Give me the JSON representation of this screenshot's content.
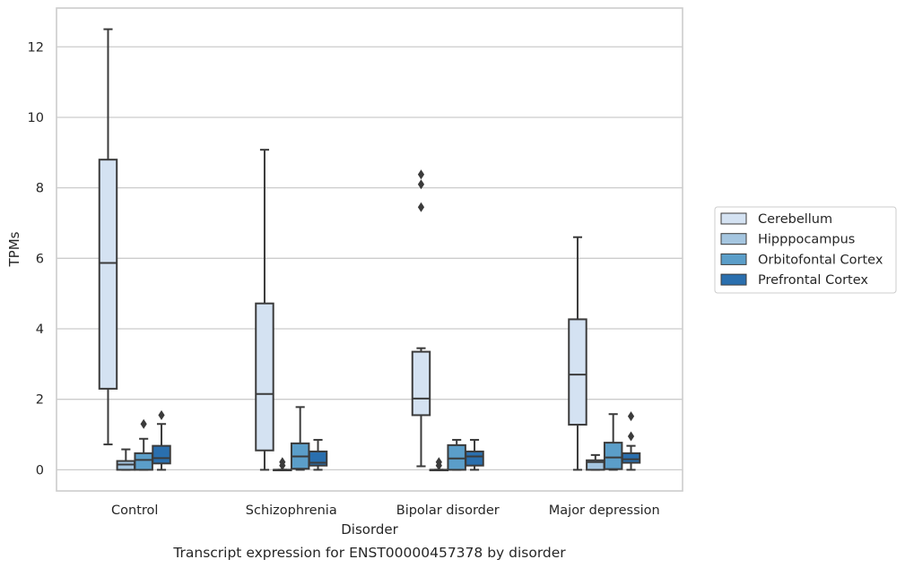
{
  "chart_data": {
    "type": "box",
    "title": "",
    "caption": "Transcript expression for ENST00000457378 by disorder",
    "xlabel": "Disorder",
    "ylabel": "TPMs",
    "ylim": [
      -0.6,
      13.1
    ],
    "yticks": [
      0,
      2,
      4,
      6,
      8,
      10,
      12
    ],
    "grid": "horizontal",
    "legend_position": "right",
    "categories": [
      "Control",
      "Schizophrenia",
      "Bipolar disorder",
      "Major depression"
    ],
    "series": [
      {
        "name": "Cerebellum",
        "color": "#d4e2f2",
        "boxes": [
          {
            "whislo": 0.72,
            "q1": 2.3,
            "med": 5.87,
            "q3": 8.8,
            "whishi": 12.5,
            "fliers": []
          },
          {
            "whislo": 0.0,
            "q1": 0.55,
            "med": 2.15,
            "q3": 4.72,
            "whishi": 9.08,
            "fliers": []
          },
          {
            "whislo": 0.1,
            "q1": 1.55,
            "med": 2.02,
            "q3": 3.35,
            "whishi": 3.45,
            "fliers": [
              7.45,
              8.1,
              8.38
            ]
          },
          {
            "whislo": 0.0,
            "q1": 1.28,
            "med": 2.7,
            "q3": 4.27,
            "whishi": 6.6,
            "fliers": []
          }
        ]
      },
      {
        "name": "Hipppocampus",
        "color": "#a5c6e0",
        "boxes": [
          {
            "whislo": 0.0,
            "q1": 0.0,
            "med": 0.15,
            "q3": 0.25,
            "whishi": 0.58,
            "fliers": []
          },
          {
            "whislo": 0.0,
            "q1": 0.0,
            "med": 0.0,
            "q3": 0.0,
            "whishi": 0.0,
            "fliers": [
              0.12,
              0.22
            ]
          },
          {
            "whislo": 0.0,
            "q1": 0.0,
            "med": 0.0,
            "q3": 0.0,
            "whishi": 0.0,
            "fliers": [
              0.12,
              0.22
            ]
          },
          {
            "whislo": 0.0,
            "q1": 0.0,
            "med": 0.22,
            "q3": 0.27,
            "whishi": 0.42,
            "fliers": []
          }
        ]
      },
      {
        "name": "Orbitofontal Cortex",
        "color": "#5b9ec9",
        "boxes": [
          {
            "whislo": 0.0,
            "q1": 0.0,
            "med": 0.28,
            "q3": 0.47,
            "whishi": 0.88,
            "fliers": [
              1.3
            ]
          },
          {
            "whislo": 0.0,
            "q1": 0.03,
            "med": 0.38,
            "q3": 0.75,
            "whishi": 1.78,
            "fliers": []
          },
          {
            "whislo": 0.0,
            "q1": 0.0,
            "med": 0.32,
            "q3": 0.7,
            "whishi": 0.85,
            "fliers": []
          },
          {
            "whislo": 0.0,
            "q1": 0.02,
            "med": 0.35,
            "q3": 0.77,
            "whishi": 1.58,
            "fliers": []
          }
        ]
      },
      {
        "name": "Prefrontal Cortex",
        "color": "#2a6fae",
        "boxes": [
          {
            "whislo": 0.0,
            "q1": 0.18,
            "med": 0.33,
            "q3": 0.68,
            "whishi": 1.3,
            "fliers": [
              1.55
            ]
          },
          {
            "whislo": 0.0,
            "q1": 0.12,
            "med": 0.2,
            "q3": 0.52,
            "whishi": 0.85,
            "fliers": []
          },
          {
            "whislo": 0.0,
            "q1": 0.12,
            "med": 0.38,
            "q3": 0.52,
            "whishi": 0.85,
            "fliers": []
          },
          {
            "whislo": 0.0,
            "q1": 0.2,
            "med": 0.3,
            "q3": 0.47,
            "whishi": 0.68,
            "fliers": [
              0.95,
              1.52
            ]
          }
        ]
      }
    ]
  }
}
